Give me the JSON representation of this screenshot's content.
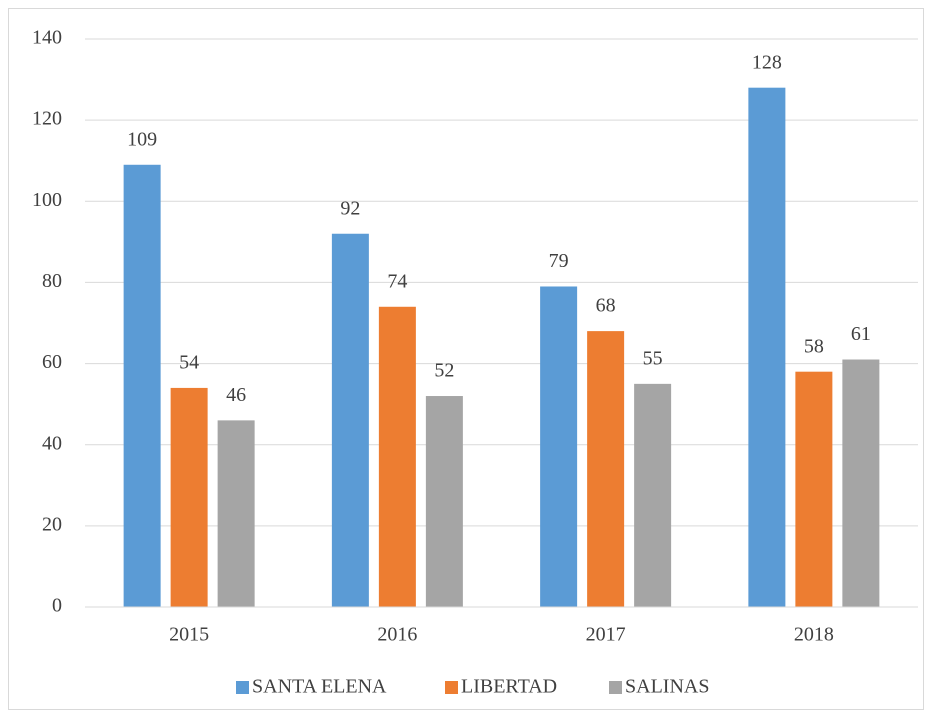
{
  "chart_data": {
    "type": "bar",
    "categories": [
      "2015",
      "2016",
      "2017",
      "2018"
    ],
    "series": [
      {
        "name": "SANTA ELENA",
        "color": "#5b9bd5",
        "values": [
          109,
          92,
          79,
          128
        ]
      },
      {
        "name": "LIBERTAD",
        "color": "#ed7d31",
        "values": [
          54,
          74,
          68,
          58
        ]
      },
      {
        "name": "SALINAS",
        "color": "#a5a5a5",
        "values": [
          46,
          52,
          55,
          61
        ]
      }
    ],
    "ylim": [
      0,
      140
    ],
    "yticks": [
      0,
      20,
      40,
      60,
      80,
      100,
      120,
      140
    ],
    "grid": true,
    "legend": "bottom"
  }
}
